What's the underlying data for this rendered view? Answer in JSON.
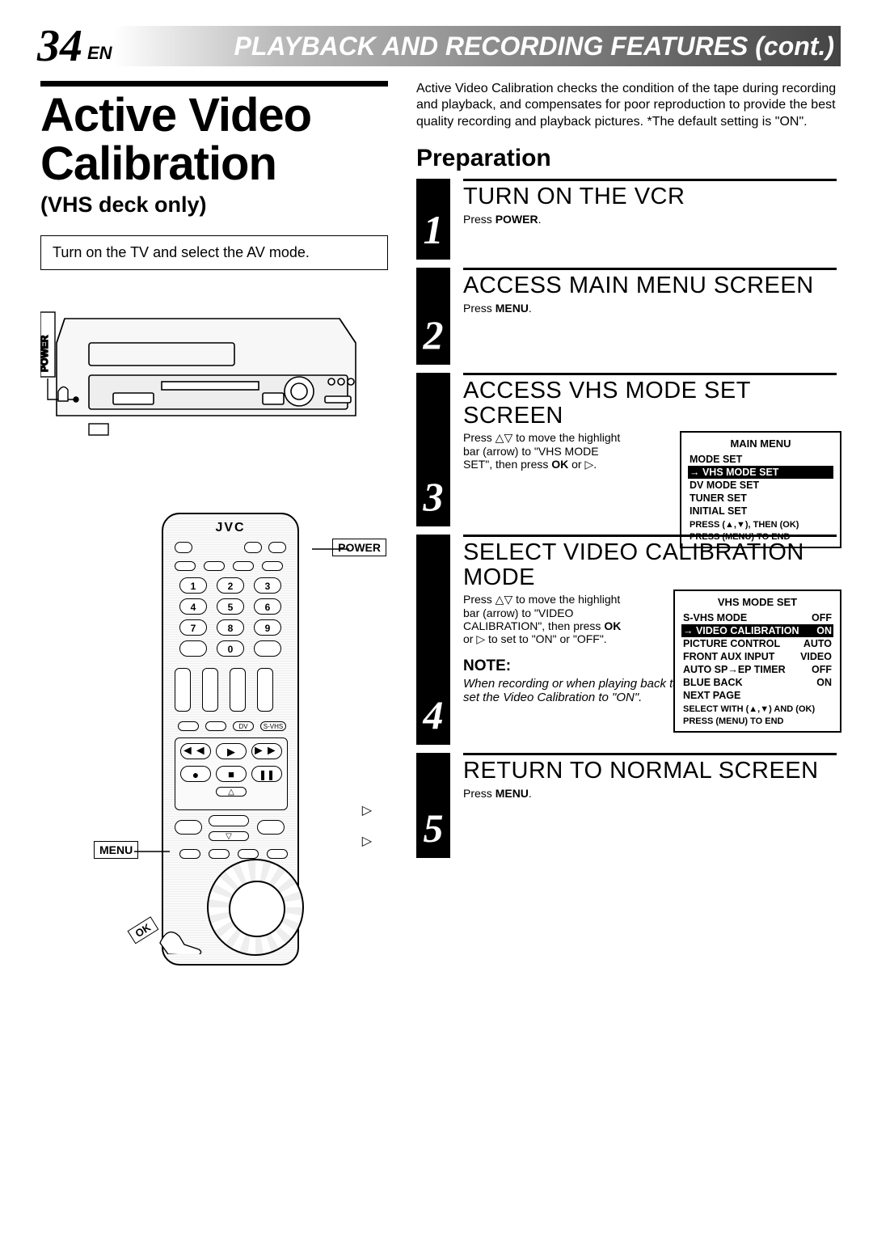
{
  "header": {
    "page_number": "34",
    "lang": "EN",
    "title": "PLAYBACK AND RECORDING FEATURES (cont.)"
  },
  "main": {
    "title_line1": "Active Video",
    "title_line2": "Calibration",
    "subtitle": "(VHS deck only)",
    "tip": "Turn on the TV and select the AV mode."
  },
  "remote": {
    "brand": "JVC",
    "labels": {
      "power": "POWER",
      "menu": "MENU",
      "ok": "OK"
    },
    "digits": [
      "1",
      "2",
      "3",
      "4",
      "5",
      "6",
      "7",
      "8",
      "9",
      "0"
    ],
    "tape_labels": [
      "DV",
      "S-VHS"
    ]
  },
  "vcr": {
    "power_label": "POWER"
  },
  "intro": "Active Video Calibration checks the condition of the tape during recording and playback, and compensates for poor reproduction to provide the best quality recording and playback pictures. *The default setting is \"ON\".",
  "prep_heading": "Preparation",
  "steps": [
    {
      "num": "1",
      "title": "TURN ON THE VCR",
      "instr_pre": "Press ",
      "instr_bold": "POWER",
      "instr_post": "."
    },
    {
      "num": "2",
      "title": "ACCESS MAIN MENU SCREEN",
      "instr_pre": "Press ",
      "instr_bold": "MENU",
      "instr_post": "."
    },
    {
      "num": "3",
      "title": "ACCESS VHS MODE SET SCREEN",
      "instr_full": "Press △▽ to move the highlight bar (arrow) to \"VHS MODE SET\", then press OK or ▷."
    },
    {
      "num": "4",
      "title": "SELECT VIDEO CALIBRATION MODE",
      "instr_full": "Press △▽ to move the highlight bar (arrow) to \"VIDEO CALIBRATION\", then press OK or ▷ to set to \"ON\" or \"OFF\"."
    },
    {
      "num": "5",
      "title": "RETURN TO NORMAL SCREEN",
      "instr_pre": "Press ",
      "instr_bold": "MENU",
      "instr_post": "."
    }
  ],
  "note": {
    "heading": "NOTE:",
    "body": "When recording or when playing back tapes recorded on this VCR set the Video Calibration to \"ON\"."
  },
  "osd_main": {
    "title": "MAIN MENU",
    "rows": [
      {
        "label": "MODE SET",
        "value": "",
        "hl": false
      },
      {
        "label": "→ VHS MODE SET",
        "value": "",
        "hl": true
      },
      {
        "label": "DV MODE SET",
        "value": "",
        "hl": false
      },
      {
        "label": "TUNER SET",
        "value": "",
        "hl": false
      },
      {
        "label": "INITIAL SET",
        "value": "",
        "hl": false
      }
    ],
    "footer1": "PRESS (▲,▼), THEN (OK)",
    "footer2": "PRESS (MENU) TO END"
  },
  "osd_vhs": {
    "title": "VHS MODE SET",
    "rows": [
      {
        "label": "S-VHS MODE",
        "value": "OFF",
        "hl": false
      },
      {
        "label": "→ VIDEO CALIBRATION",
        "value": "ON",
        "hl": true
      },
      {
        "label": "PICTURE CONTROL",
        "value": "AUTO",
        "hl": false
      },
      {
        "label": "FRONT AUX INPUT",
        "value": "VIDEO",
        "hl": false
      },
      {
        "label": "AUTO SP→EP TIMER",
        "value": "OFF",
        "hl": false
      },
      {
        "label": "BLUE BACK",
        "value": "ON",
        "hl": false
      },
      {
        "label": "NEXT PAGE",
        "value": "",
        "hl": false
      }
    ],
    "footer1": "SELECT WITH (▲,▼) AND (OK)",
    "footer2": "PRESS (MENU) TO END"
  }
}
